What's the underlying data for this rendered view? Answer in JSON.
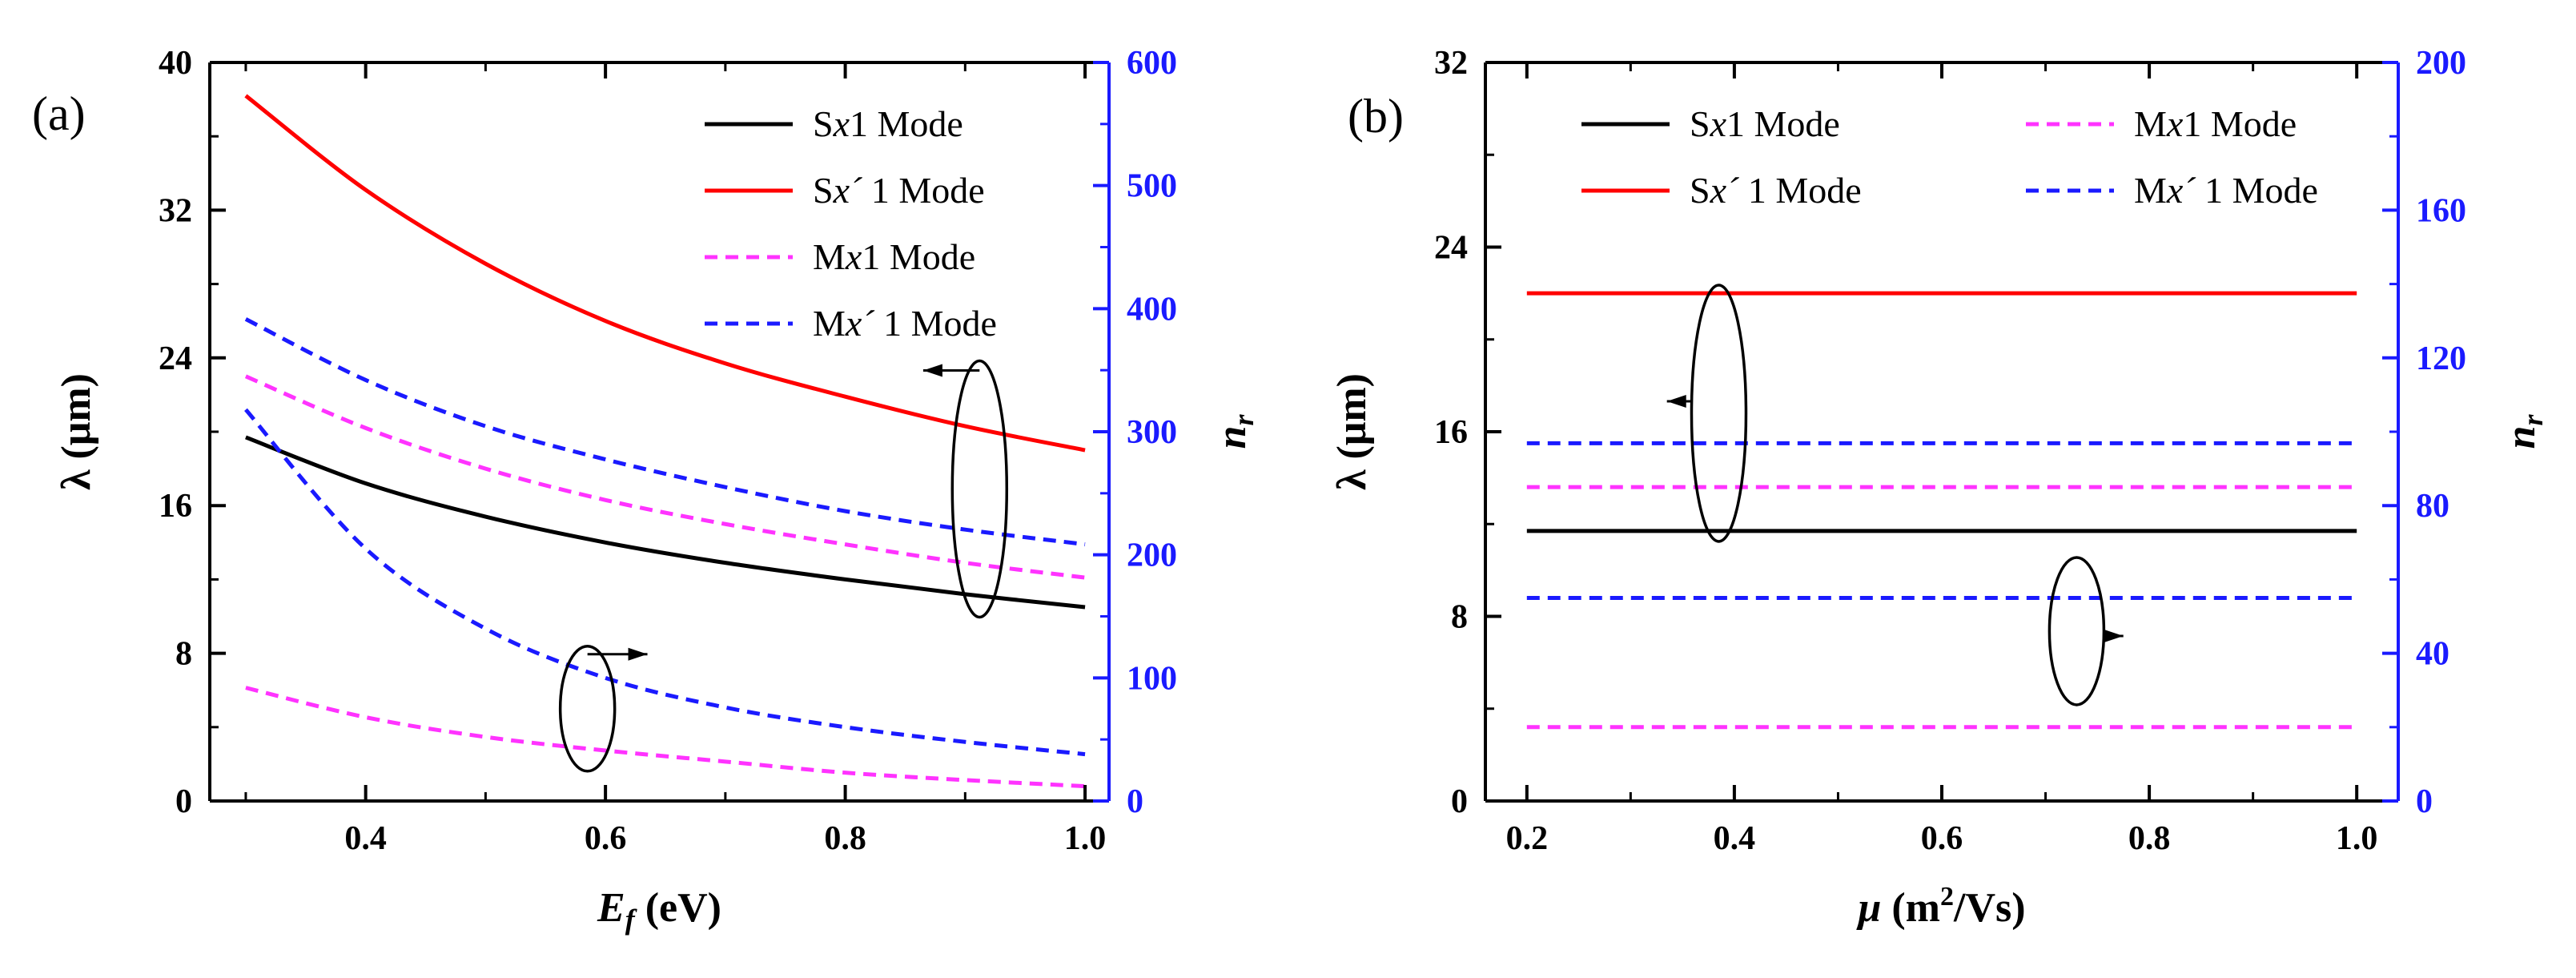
{
  "chart_data": [
    {
      "type": "line",
      "panel_label": "(a)",
      "xlabel_main": "E",
      "xlabel_sub": "f",
      "xlabel_unit": " (eV)",
      "ylabel": "λ (μm)",
      "y2label_main": "n",
      "y2label_sub": "r",
      "xlim": [
        0.27,
        1.02
      ],
      "ylim": [
        0,
        40
      ],
      "y2lim": [
        0,
        600
      ],
      "xticks": [
        0.4,
        0.6,
        0.8,
        1.0
      ],
      "xtick_labels": [
        "0.4",
        "0.6",
        "0.8",
        "1.0"
      ],
      "yticks": [
        0,
        8,
        16,
        24,
        32,
        40
      ],
      "ytick_labels": [
        "0",
        "8",
        "16",
        "24",
        "32",
        "40"
      ],
      "y2ticks": [
        0,
        100,
        200,
        300,
        400,
        500,
        600
      ],
      "y2tick_labels": [
        "0",
        "100",
        "200",
        "300",
        "400",
        "500",
        "600"
      ],
      "legend": [
        {
          "pre": "S",
          "it": "x",
          "post": "1 Mode",
          "color": "#000000",
          "dash": false
        },
        {
          "pre": "S",
          "it": "x´",
          "post": " 1 Mode",
          "color": "#ff0000",
          "dash": false
        },
        {
          "pre": "M",
          "it": "x",
          "post": "1 Mode",
          "color": "#ff33ff",
          "dash": true
        },
        {
          "pre": "M",
          "it": "x´",
          "post": " 1 Mode",
          "color": "#1a1aff",
          "dash": true
        }
      ],
      "x": [
        0.3,
        0.4,
        0.5,
        0.6,
        0.7,
        0.8,
        0.9,
        1.0
      ],
      "series": [
        {
          "name": "Sx1 Mode λ",
          "axis": "left",
          "color": "#000000",
          "dash": false,
          "values": [
            19.7,
            17.2,
            15.4,
            14.0,
            12.9,
            12.0,
            11.2,
            10.5
          ]
        },
        {
          "name": "Sx´1 Mode λ",
          "axis": "left",
          "color": "#ff0000",
          "dash": false,
          "values": [
            38.2,
            33.1,
            29.1,
            26.0,
            23.7,
            21.9,
            20.3,
            19.0
          ]
        },
        {
          "name": "Mx1 Mode λ",
          "axis": "left",
          "color": "#ff33ff",
          "dash": true,
          "values": [
            23.0,
            20.2,
            18.0,
            16.3,
            15.0,
            13.9,
            12.9,
            12.1
          ]
        },
        {
          "name": "Mx´1 Mode λ",
          "axis": "left",
          "color": "#1a1aff",
          "dash": true,
          "values": [
            26.1,
            22.8,
            20.3,
            18.5,
            17.0,
            15.7,
            14.7,
            13.9
          ]
        },
        {
          "name": "Mx1 Mode n_r",
          "axis": "right",
          "color": "#ff33ff",
          "dash": true,
          "values": [
            92,
            68,
            52,
            41,
            32,
            23,
            17,
            12
          ]
        },
        {
          "name": "Mx´1 Mode n_r",
          "axis": "right",
          "color": "#1a1aff",
          "dash": true,
          "values": [
            318,
            205,
            140,
            100,
            76,
            60,
            48,
            38
          ]
        }
      ],
      "annotations": [
        {
          "kind": "ellipse-arrow",
          "target_axis": "left",
          "cx": 0.912,
          "cy": 16.9,
          "arrow_to_x": 0.865
        },
        {
          "kind": "ellipse-arrow",
          "target_axis": "right",
          "cx": 0.585,
          "cy": 75,
          "arrow_to_x": 0.635
        }
      ]
    },
    {
      "type": "line",
      "panel_label": "(b)",
      "xlabel_main": "μ",
      "xlabel_unit": " (m",
      "xlabel_sup": "2",
      "xlabel_tail": "/Vs)",
      "ylabel": "λ (μm)",
      "y2label_main": "n",
      "y2label_sub": "r",
      "xlim": [
        0.16,
        1.04
      ],
      "ylim": [
        0,
        32
      ],
      "y2lim": [
        0,
        200
      ],
      "xticks": [
        0.2,
        0.4,
        0.6,
        0.8,
        1.0
      ],
      "xtick_labels": [
        "0.2",
        "0.4",
        "0.6",
        "0.8",
        "1.0"
      ],
      "yticks": [
        0,
        8,
        16,
        24,
        32
      ],
      "ytick_labels": [
        "0",
        "8",
        "16",
        "24",
        "32"
      ],
      "y2ticks": [
        0,
        40,
        80,
        120,
        160,
        200
      ],
      "y2tick_labels": [
        "0",
        "40",
        "80",
        "120",
        "160",
        "200"
      ],
      "legend": [
        {
          "pre": "S",
          "it": "x",
          "post": "1 Mode",
          "color": "#000000",
          "dash": false
        },
        {
          "pre": "S",
          "it": "x´",
          "post": " 1 Mode",
          "color": "#ff0000",
          "dash": false
        },
        {
          "pre": "M",
          "it": "x",
          "post": "1 Mode",
          "color": "#ff33ff",
          "dash": true
        },
        {
          "pre": "M",
          "it": "x´",
          "post": " 1 Mode",
          "color": "#1a1aff",
          "dash": true
        }
      ],
      "x": [
        0.2,
        0.4,
        0.6,
        0.8,
        1.0
      ],
      "series": [
        {
          "name": "Sx1 Mode λ",
          "axis": "left",
          "color": "#000000",
          "dash": false,
          "values": [
            11.7,
            11.7,
            11.7,
            11.7,
            11.7
          ]
        },
        {
          "name": "Sx´1 Mode λ",
          "axis": "left",
          "color": "#ff0000",
          "dash": false,
          "values": [
            22.0,
            22.0,
            22.0,
            22.0,
            22.0
          ]
        },
        {
          "name": "Mx1 Mode λ",
          "axis": "left",
          "color": "#ff33ff",
          "dash": true,
          "values": [
            13.6,
            13.6,
            13.6,
            13.6,
            13.6
          ]
        },
        {
          "name": "Mx´1 Mode λ",
          "axis": "left",
          "color": "#1a1aff",
          "dash": true,
          "values": [
            15.5,
            15.5,
            15.5,
            15.5,
            15.5
          ]
        },
        {
          "name": "Mx1 Mode n_r",
          "axis": "right",
          "color": "#ff33ff",
          "dash": true,
          "values": [
            20,
            20,
            20,
            20,
            20
          ]
        },
        {
          "name": "Mx´1 Mode n_r",
          "axis": "right",
          "color": "#1a1aff",
          "dash": true,
          "values": [
            55,
            55,
            55,
            55,
            55
          ]
        }
      ],
      "annotations": [
        {
          "kind": "ellipse-arrow",
          "target_axis": "left",
          "cx": 0.385,
          "cy": 16.8,
          "arrow_to_x": 0.335
        },
        {
          "kind": "ellipse-arrow",
          "target_axis": "right",
          "cx": 0.73,
          "cy": 46,
          "arrow_to_x": 0.775
        }
      ]
    }
  ]
}
